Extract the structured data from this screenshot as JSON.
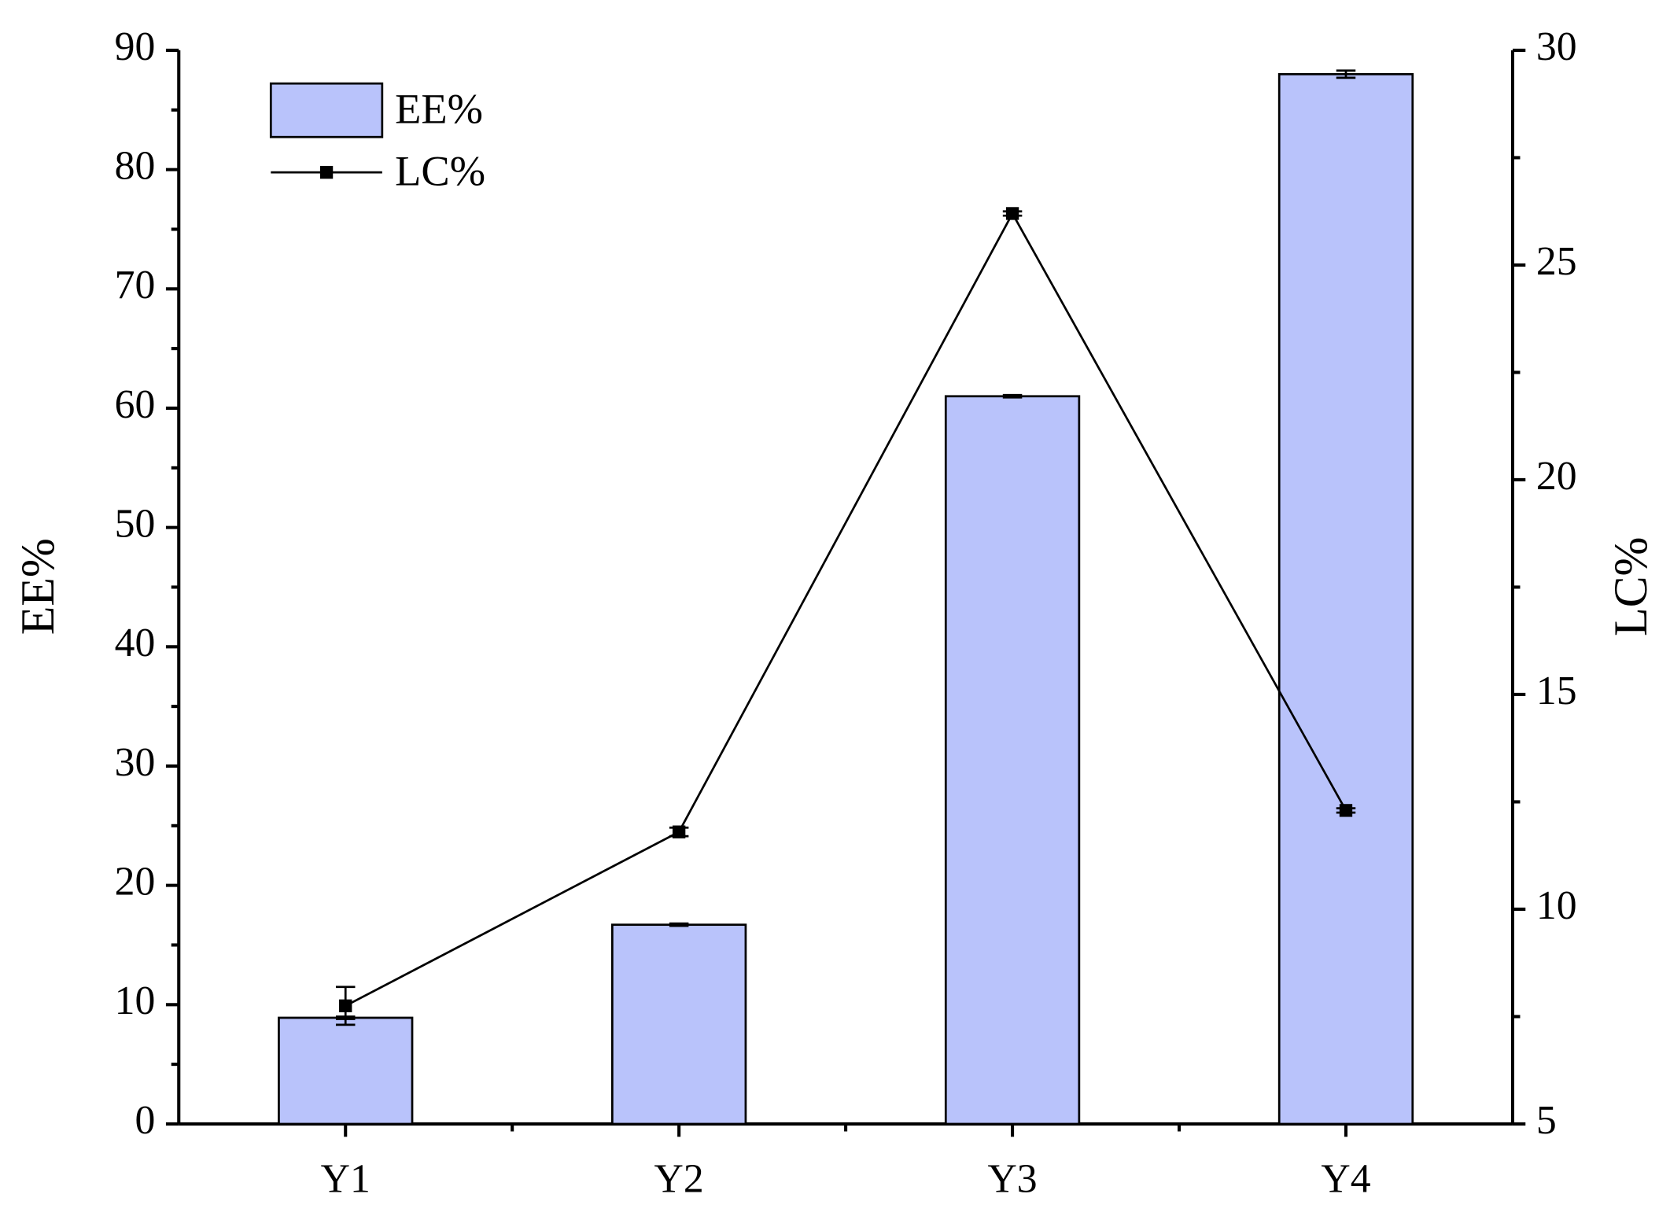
{
  "chart_data": {
    "type": "bar-line",
    "categories": [
      "Y1",
      "Y2",
      "Y3",
      "Y4"
    ],
    "y_label": "EE%",
    "y2_label": "LC%",
    "ylim": [
      0,
      90
    ],
    "yticks": [
      0,
      10,
      20,
      30,
      40,
      50,
      60,
      70,
      80,
      90
    ],
    "y2lim": [
      5,
      30
    ],
    "y2ticks": [
      5,
      10,
      15,
      20,
      25,
      30
    ],
    "legend": "upper left",
    "series": [
      {
        "name": "EE%",
        "type": "bar",
        "color": "#b9c3fb",
        "values": [
          8.9,
          16.7,
          61.0,
          88.0
        ],
        "errors": [
          0.1,
          0.1,
          0.1,
          0.3
        ]
      },
      {
        "name": "LC%",
        "type": "line",
        "axis": "y2",
        "color": "#000000",
        "values": [
          7.75,
          11.8,
          26.2,
          12.3
        ],
        "errors": [
          0.44,
          0.1,
          0.05,
          0.05
        ]
      }
    ]
  }
}
